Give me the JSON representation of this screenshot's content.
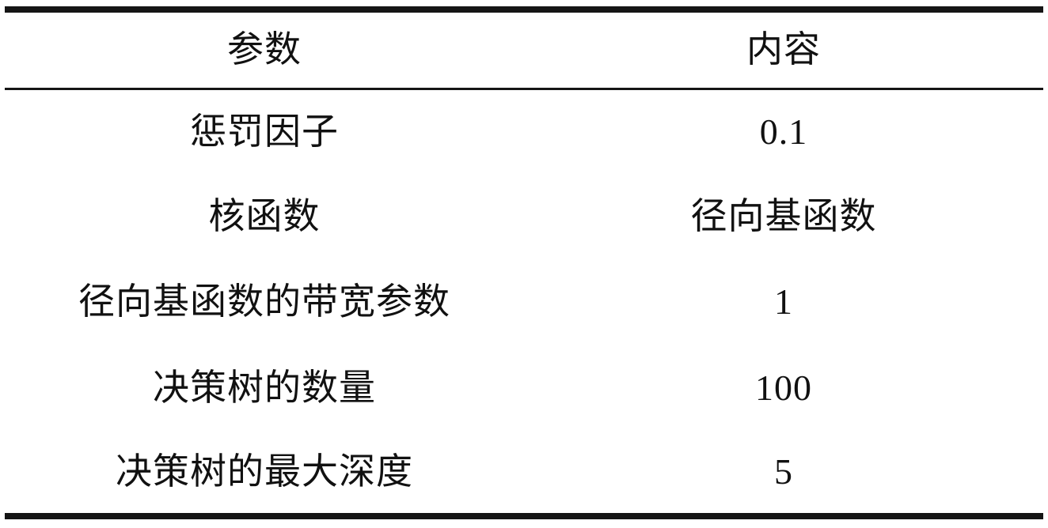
{
  "table": {
    "columns": [
      {
        "label": "参数"
      },
      {
        "label": "内容"
      }
    ],
    "rows": [
      {
        "param": "惩罚因子",
        "value": "0.1"
      },
      {
        "param": "核函数",
        "value": "径向基函数"
      },
      {
        "param": "径向基函数的带宽参数",
        "value": "1"
      },
      {
        "param": "决策树的数量",
        "value": "100"
      },
      {
        "param": "决策树的最大深度",
        "value": "5"
      }
    ]
  },
  "style": {
    "rule_color": "#151515",
    "text_color": "#111111",
    "background_color": "#ffffff"
  }
}
